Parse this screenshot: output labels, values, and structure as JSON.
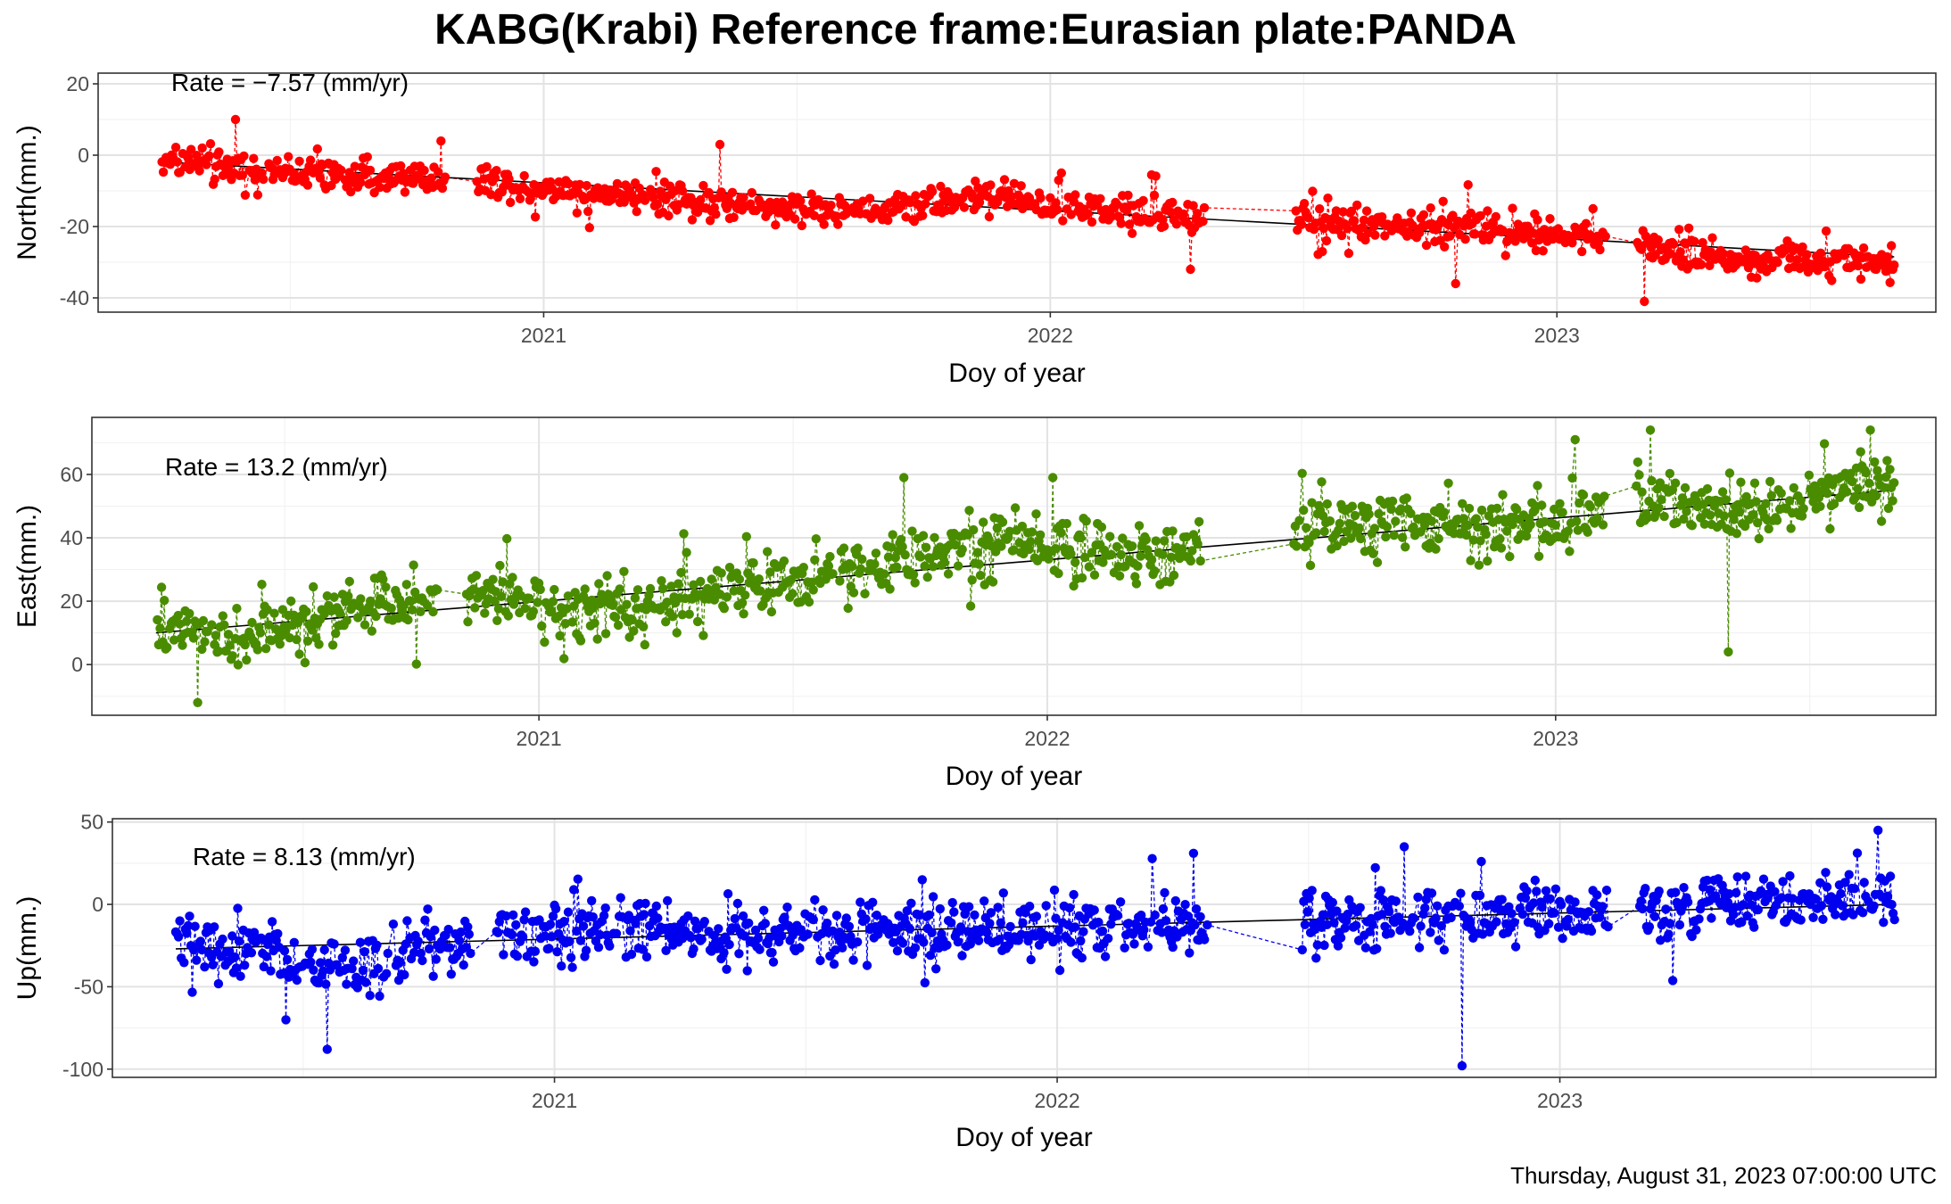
{
  "title": "KABG(Krabi) Reference frame:Eurasian plate:PANDA",
  "timestamp": "Thursday, August 31, 2023 07:00:00 UTC",
  "colors": {
    "north": "#ff0000",
    "east": "#4a8c00",
    "up": "#0000ee",
    "trend": "#000000"
  },
  "chart_data": [
    {
      "type": "scatter",
      "id": "north",
      "ylabel": "North(mm.)",
      "xlabel": "Doy of year",
      "rate_label": "Rate = −7.57 (mm/yr)",
      "rate": -7.57,
      "xlim": [
        "2020-02-15",
        "2023-10-01"
      ],
      "ylim": [
        -44,
        23
      ],
      "yticks": [
        20,
        0,
        -20,
        -40
      ],
      "yticklabels": [
        "20",
        "0",
        "-20",
        "-40"
      ],
      "xticks": [
        "2021-01-01",
        "2022-01-01",
        "2023-01-01"
      ],
      "xticklabels": [
        "2021",
        "2022",
        "2023"
      ],
      "trend": {
        "start": [
          "2020-04-01",
          -1.9
        ],
        "end": [
          "2023-09-01",
          -28.5
        ]
      },
      "series_anchors": [
        [
          "2020-04-01",
          -1
        ],
        [
          "2020-05-15",
          -3
        ],
        [
          "2020-07-01",
          -5
        ],
        [
          "2020-09-01",
          -6
        ],
        [
          "2020-10-15",
          -6
        ],
        [
          "2020-11-15",
          -7
        ],
        [
          "2021-01-01",
          -9
        ],
        [
          "2021-03-01",
          -11
        ],
        [
          "2021-05-01",
          -13
        ],
        [
          "2021-07-01",
          -15
        ],
        [
          "2021-09-01",
          -15
        ],
        [
          "2021-10-15",
          -12
        ],
        [
          "2021-12-01",
          -12
        ],
        [
          "2022-02-01",
          -15
        ],
        [
          "2022-04-01",
          -17
        ],
        [
          "2022-05-01",
          -18
        ],
        [
          "2022-07-01",
          -19
        ],
        [
          "2022-09-01",
          -20
        ],
        [
          "2022-11-01",
          -20
        ],
        [
          "2023-01-01",
          -22
        ],
        [
          "2023-03-01",
          -25
        ],
        [
          "2023-05-01",
          -29
        ],
        [
          "2023-07-01",
          -29
        ],
        [
          "2023-09-01",
          -30
        ]
      ],
      "noise": 3.2,
      "gaps": [
        [
          "2020-10-22",
          "2020-11-14"
        ],
        [
          "2022-04-22",
          "2022-06-27"
        ],
        [
          "2023-02-05",
          "2023-02-28"
        ]
      ],
      "outliers": [
        [
          "2020-05-24",
          10
        ],
        [
          "2021-05-08",
          3
        ],
        [
          "2022-04-12",
          -32
        ],
        [
          "2022-10-20",
          -36
        ],
        [
          "2023-03-05",
          -41
        ]
      ]
    },
    {
      "type": "scatter",
      "id": "east",
      "ylabel": "East(mm.)",
      "xlabel": "Doy of year",
      "rate_label": "Rate = 13.2 (mm/yr)",
      "rate": 13.2,
      "xlim": [
        "2020-02-15",
        "2023-10-01"
      ],
      "ylim": [
        -16,
        78
      ],
      "yticks": [
        60,
        40,
        20,
        0
      ],
      "yticklabels": [
        "60",
        "40",
        "20",
        "0"
      ],
      "xticks": [
        "2021-01-01",
        "2022-01-01",
        "2023-01-01"
      ],
      "xticklabels": [
        "2021",
        "2022",
        "2023"
      ],
      "trend": {
        "start": [
          "2020-04-01",
          10
        ],
        "end": [
          "2023-09-01",
          55
        ]
      },
      "series_anchors": [
        [
          "2020-04-01",
          14
        ],
        [
          "2020-06-01",
          9
        ],
        [
          "2020-08-01",
          16
        ],
        [
          "2020-10-01",
          20
        ],
        [
          "2020-12-01",
          21
        ],
        [
          "2021-02-01",
          18
        ],
        [
          "2021-04-01",
          20
        ],
        [
          "2021-06-01",
          24
        ],
        [
          "2021-08-01",
          30
        ],
        [
          "2021-10-01",
          33
        ],
        [
          "2021-12-01",
          40
        ],
        [
          "2022-02-01",
          36
        ],
        [
          "2022-04-01",
          35
        ],
        [
          "2022-07-01",
          42
        ],
        [
          "2022-09-01",
          46
        ],
        [
          "2022-11-01",
          42
        ],
        [
          "2023-01-01",
          44
        ],
        [
          "2023-03-01",
          52
        ],
        [
          "2023-05-01",
          48
        ],
        [
          "2023-07-01",
          52
        ],
        [
          "2023-09-01",
          58
        ]
      ],
      "noise": 6.5,
      "gaps": [
        [
          "2020-10-20",
          "2020-11-10"
        ],
        [
          "2022-04-22",
          "2022-06-27"
        ],
        [
          "2023-02-05",
          "2023-02-28"
        ]
      ],
      "outliers": [
        [
          "2020-05-01",
          -12
        ],
        [
          "2021-09-20",
          59
        ],
        [
          "2022-01-05",
          59
        ],
        [
          "2023-01-15",
          71
        ],
        [
          "2023-03-10",
          74
        ],
        [
          "2023-05-05",
          4
        ],
        [
          "2023-08-15",
          74
        ]
      ]
    },
    {
      "type": "scatter",
      "id": "up",
      "ylabel": "Up(mm.)",
      "xlabel": "Doy of year",
      "rate_label": "Rate = 8.13 (mm/yr)",
      "rate": 8.13,
      "xlim": [
        "2020-02-15",
        "2023-10-01"
      ],
      "ylim": [
        -105,
        52
      ],
      "yticks": [
        50,
        0,
        -50,
        -100
      ],
      "yticklabels": [
        "50",
        "0",
        "-50",
        "-100"
      ],
      "xticks": [
        "2021-01-01",
        "2022-01-01",
        "2023-01-01"
      ],
      "xticklabels": [
        "2021",
        "2022",
        "2023"
      ],
      "trend": {
        "start": [
          "2020-04-01",
          -27
        ],
        "end": [
          "2023-09-01",
          0
        ]
      },
      "series_anchors": [
        [
          "2020-04-01",
          -22
        ],
        [
          "2020-06-01",
          -28
        ],
        [
          "2020-08-01",
          -40
        ],
        [
          "2020-10-01",
          -26
        ],
        [
          "2020-12-01",
          -20
        ],
        [
          "2021-03-01",
          -14
        ],
        [
          "2021-06-01",
          -18
        ],
        [
          "2021-09-01",
          -15
        ],
        [
          "2021-12-01",
          -14
        ],
        [
          "2022-03-01",
          -12
        ],
        [
          "2022-07-01",
          -10
        ],
        [
          "2022-10-01",
          -6
        ],
        [
          "2022-12-01",
          -5
        ],
        [
          "2023-03-01",
          -6
        ],
        [
          "2023-05-01",
          3
        ],
        [
          "2023-07-01",
          2
        ],
        [
          "2023-09-01",
          4
        ]
      ],
      "noise": 12,
      "gaps": [
        [
          "2020-11-01",
          "2020-11-20"
        ],
        [
          "2022-04-20",
          "2022-06-27"
        ],
        [
          "2023-02-05",
          "2023-02-28"
        ]
      ],
      "outliers": [
        [
          "2020-07-20",
          -88
        ],
        [
          "2020-06-20",
          -70
        ],
        [
          "2022-04-10",
          31
        ],
        [
          "2022-09-10",
          35
        ],
        [
          "2022-10-22",
          -98
        ],
        [
          "2022-11-05",
          26
        ],
        [
          "2023-08-20",
          45
        ]
      ]
    }
  ]
}
